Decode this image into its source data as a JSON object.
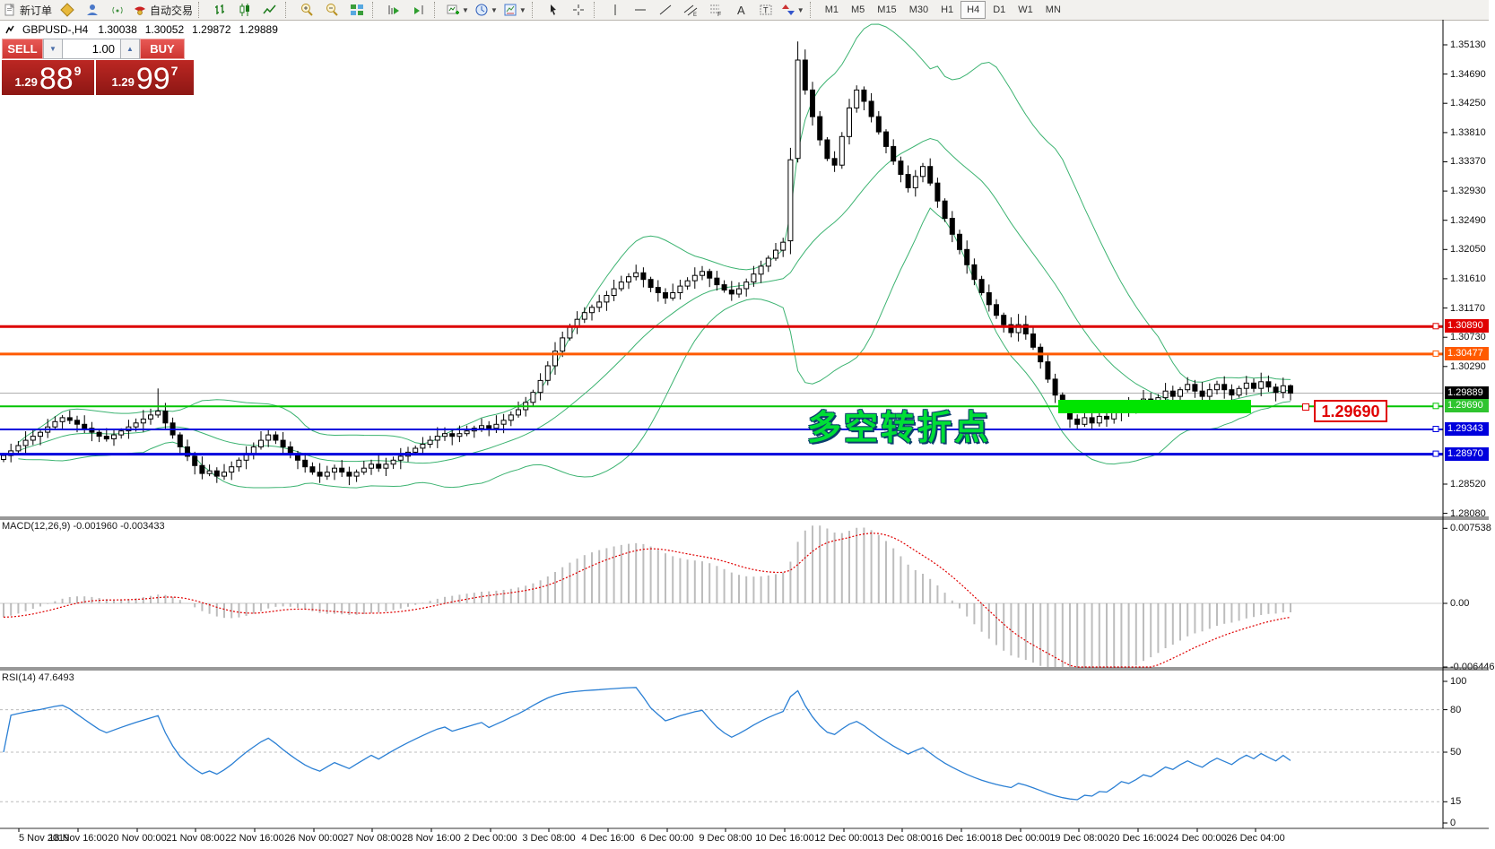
{
  "toolbar": {
    "new_order_label": "新订单",
    "autotrading_label": "自动交易",
    "groups": [
      [
        "charts",
        "terminal",
        "signals"
      ],
      [
        "bar-chart",
        "candlestick-chart",
        "line-chart"
      ],
      [
        "zoom-in",
        "zoom-out",
        "tile-windows"
      ],
      [
        "auto-scroll",
        "chart-shift"
      ],
      [
        "new-chart",
        "profiles",
        "templates"
      ],
      [
        "cursor",
        "crosshair"
      ],
      [
        "vertical-line",
        "horizontal-line",
        "trendline",
        "equidistant-channel",
        "fibonacci",
        "text",
        "text-label",
        "arrows"
      ]
    ],
    "dropdown_buttons": [
      "new-chart",
      "profiles",
      "templates",
      "arrows"
    ],
    "timeframes": [
      "M1",
      "M5",
      "M15",
      "M30",
      "H1",
      "H4",
      "D1",
      "W1",
      "MN"
    ],
    "active_timeframe": "H4"
  },
  "quote_bar": {
    "symbol": "GBPUSD-,H4",
    "open": "1.30038",
    "high": "1.30052",
    "low": "1.29872",
    "close": "1.29889"
  },
  "trade_panel": {
    "sell_label": "SELL",
    "buy_label": "BUY",
    "volume": "1.00",
    "sell_price_prefix": "1.29",
    "sell_price_big": "88",
    "sell_price_sup": "9",
    "buy_price_prefix": "1.29",
    "buy_price_big": "99",
    "buy_price_sup": "7"
  },
  "chart_data": {
    "type": "candlestick",
    "symbol": "GBPUSD-",
    "timeframe": "H4",
    "price_axis_ticks": [
      "1.35130",
      "1.34690",
      "1.34250",
      "1.33810",
      "1.33370",
      "1.32930",
      "1.32490",
      "1.32050",
      "1.31610",
      "1.31170",
      "1.30730",
      "1.30290",
      "1.28520",
      "1.28080"
    ],
    "horizontal_lines": [
      {
        "price": 1.3089,
        "label": "1.30890",
        "color": "#dd0000",
        "badge": "#e00000",
        "width": 3
      },
      {
        "price": 1.30477,
        "label": "1.30477",
        "color": "#ff5a00",
        "badge": "#ff5a00",
        "width": 3
      },
      {
        "price": 1.2969,
        "label": "1.29690",
        "color": "#00c400",
        "badge": "#2fc42f",
        "width": 2
      },
      {
        "price": 1.29343,
        "label": "1.29343",
        "color": "#0000dd",
        "badge": "#0000dd",
        "width": 2
      },
      {
        "price": 1.2897,
        "label": "1.28970",
        "color": "#0000dd",
        "badge": "#0000dd",
        "width": 3
      }
    ],
    "current_price": {
      "value": 1.29889,
      "label": "1.29889",
      "line_color": "#b0b0b0",
      "badge": "#000000"
    },
    "candles": {
      "up_color": "#ffffff",
      "down_color": "#000000",
      "outline": "#000000",
      "closes": [
        1.2895,
        1.2902,
        1.291,
        1.2918,
        1.2924,
        1.293,
        1.2938,
        1.2946,
        1.2952,
        1.2948,
        1.2942,
        1.2936,
        1.293,
        1.2924,
        1.292,
        1.2926,
        1.2932,
        1.2938,
        1.2944,
        1.295,
        1.2956,
        1.2962,
        1.2944,
        1.2926,
        1.2908,
        1.2894,
        1.288,
        1.2868,
        1.2872,
        1.2864,
        1.287,
        1.2878,
        1.2888,
        1.2898,
        1.2908,
        1.2918,
        1.2926,
        1.2918,
        1.2908,
        1.2898,
        1.2888,
        1.2878,
        1.287,
        1.2864,
        1.287,
        1.2876,
        1.287,
        1.2864,
        1.287,
        1.2876,
        1.2882,
        1.2876,
        1.2882,
        1.2888,
        1.2894,
        1.29,
        1.2906,
        1.2912,
        1.2918,
        1.2924,
        1.2928,
        1.2924,
        1.2928,
        1.2932,
        1.2936,
        1.294,
        1.2936,
        1.2942,
        1.2948,
        1.2956,
        1.2964,
        1.2975,
        1.299,
        1.3008,
        1.303,
        1.3052,
        1.3072,
        1.3088,
        1.31,
        1.311,
        1.3118,
        1.3126,
        1.3136,
        1.3146,
        1.3156,
        1.3164,
        1.317,
        1.316,
        1.3148,
        1.314,
        1.3132,
        1.314,
        1.315,
        1.3158,
        1.3166,
        1.3172,
        1.3162,
        1.3152,
        1.3144,
        1.3138,
        1.3146,
        1.3156,
        1.3168,
        1.318,
        1.3192,
        1.3204,
        1.3216,
        1.334,
        1.349,
        1.3445,
        1.3405,
        1.337,
        1.3342,
        1.3332,
        1.3375,
        1.3418,
        1.3445,
        1.3428,
        1.3405,
        1.3382,
        1.336,
        1.3338,
        1.3318,
        1.3298,
        1.3315,
        1.333,
        1.3305,
        1.3278,
        1.3252,
        1.3228,
        1.3205,
        1.3182,
        1.316,
        1.314,
        1.3122,
        1.3106,
        1.3092,
        1.308,
        1.3092,
        1.3078,
        1.3058,
        1.3036,
        1.301,
        1.2986,
        1.2966,
        1.295,
        1.2942,
        1.2952,
        1.2944,
        1.2954,
        1.295,
        1.296,
        1.2972,
        1.2962,
        1.297,
        1.298,
        1.2972,
        1.2982,
        1.2992,
        1.2984,
        1.2994,
        1.3002,
        1.2992,
        1.2984,
        1.2994,
        1.3002,
        1.2994,
        1.2986,
        1.2996,
        1.3004,
        1.2996,
        1.3006,
        1.2998,
        1.299,
        1.3,
        1.29889
      ],
      "overrides": {
        "21": {
          "h": 1.2996
        },
        "107": {
          "o": 1.3218,
          "h": 1.3358,
          "l": 1.3198,
          "c": 1.334
        },
        "108": {
          "o": 1.3342,
          "h": 1.3518,
          "l": 1.3336,
          "c": 1.349
        },
        "109": {
          "o": 1.349,
          "h": 1.3506,
          "l": 1.3438,
          "c": 1.3445
        },
        "116": {
          "h": 1.3452
        },
        "138": {
          "h": 1.3108
        },
        "175": {
          "h": 1.3002,
          "l": 1.2978
        }
      }
    },
    "indicators": {
      "bollinger": {
        "period": 20,
        "deviation": 2,
        "color": "#3cb371"
      },
      "macd": {
        "name": "MACD(12,26,9)",
        "values": "-0.001960 -0.003433",
        "axis_ticks": [
          {
            "text": "0.007538",
            "value": 0.007538
          },
          {
            "text": "0.00",
            "value": 0
          },
          {
            "text": "-0.006446",
            "value": -0.006446
          }
        ],
        "histogram_color": "#bdbdbd",
        "signal_color": "#e00000"
      },
      "rsi": {
        "name": "RSI(14)",
        "value": "47.6493",
        "axis_ticks": [
          {
            "text": "100",
            "value": 100
          },
          {
            "text": "80",
            "value": 80
          },
          {
            "text": "50",
            "value": 50
          },
          {
            "text": "15",
            "value": 15
          },
          {
            "text": "0",
            "value": 0
          }
        ],
        "levels": [
          80,
          50,
          15
        ],
        "color": "#2a7fd4",
        "level_color": "#bcbcbc"
      }
    },
    "time_axis": [
      "5 Nov 2019",
      "18 Nov 16:00",
      "20 Nov 00:00",
      "21 Nov 08:00",
      "22 Nov 16:00",
      "26 Nov 00:00",
      "27 Nov 08:00",
      "28 Nov 16:00",
      "2 Dec 00:00",
      "3 Dec 08:00",
      "4 Dec 16:00",
      "6 Dec 00:00",
      "9 Dec 08:00",
      "10 Dec 16:00",
      "12 Dec 00:00",
      "13 Dec 08:00",
      "16 Dec 16:00",
      "18 Dec 00:00",
      "19 Dec 08:00",
      "20 Dec 16:00",
      "24 Dec 00:00",
      "26 Dec 04:00"
    ],
    "annotations": {
      "turning_point_text": {
        "text": "多空转折点",
        "color": "#00de36"
      },
      "support_rect": {
        "color": "#00e400",
        "price_top": 1.2979,
        "price_bottom": 1.2959
      },
      "price_tag": {
        "text": "1.29690",
        "color": "#e00000"
      }
    }
  }
}
